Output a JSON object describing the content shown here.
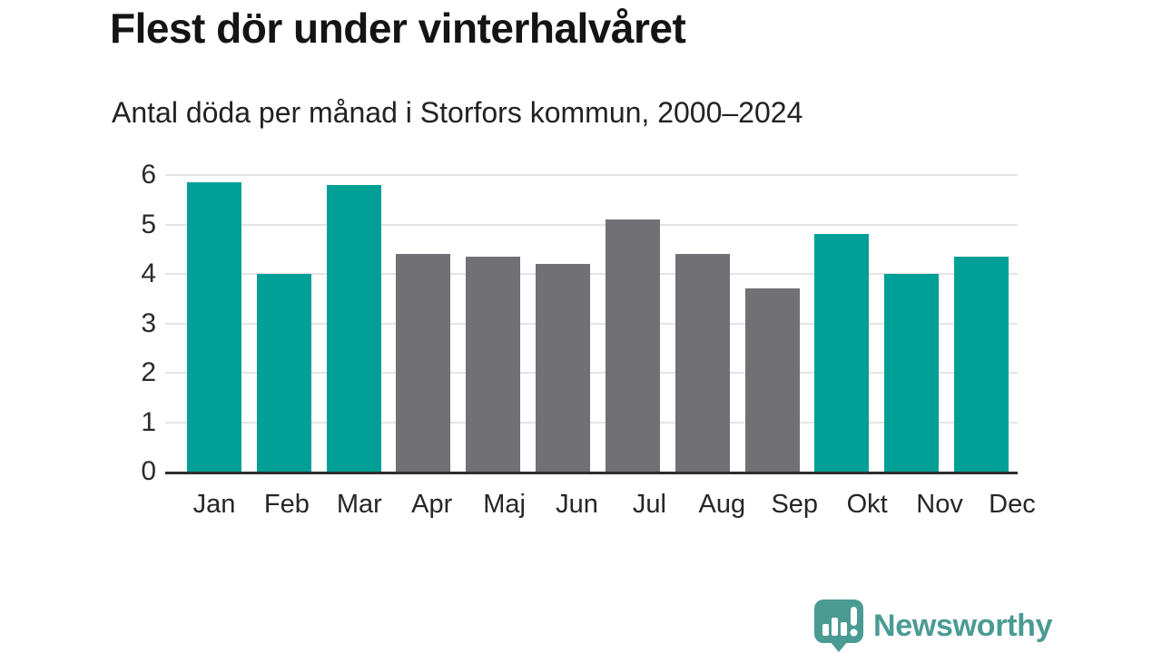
{
  "title": "Flest dör under vinterhalvåret",
  "subtitle": "Antal döda per månad i Storfors kommun, 2000–2024",
  "logo": {
    "brand": "Newsworthy",
    "icon": "newsworthy-chart-bubble-icon",
    "color": "#4a9b94"
  },
  "colors": {
    "highlight_teal": "#00a096",
    "base_gray": "#717074",
    "gridline": "#e4e4e4",
    "axis_line": "#2e2e2e",
    "title_text": "#141414",
    "body_text": "#262626"
  },
  "chart_data": {
    "type": "bar",
    "title": "Flest dör under vinterhalvåret",
    "subtitle": "Antal döda per månad i Storfors kommun, 2000–2024",
    "categories": [
      "Jan",
      "Feb",
      "Mar",
      "Apr",
      "Maj",
      "Jun",
      "Jul",
      "Aug",
      "Sep",
      "Okt",
      "Nov",
      "Dec"
    ],
    "values": [
      5.85,
      4.0,
      5.8,
      4.4,
      4.35,
      4.2,
      5.1,
      4.4,
      3.7,
      4.8,
      4.0,
      4.35
    ],
    "bar_colors": [
      "#00a096",
      "#00a096",
      "#00a096",
      "#717074",
      "#717074",
      "#717074",
      "#717074",
      "#717074",
      "#717074",
      "#00a096",
      "#00a096",
      "#00a096"
    ],
    "highlighted_categories": [
      "Jan",
      "Feb",
      "Mar",
      "Okt",
      "Nov",
      "Dec"
    ],
    "xlabel": "",
    "ylabel": "",
    "ylim": [
      0,
      6
    ],
    "yticks": [
      0,
      1,
      2,
      3,
      4,
      5,
      6
    ],
    "grid": true,
    "legend": false
  }
}
